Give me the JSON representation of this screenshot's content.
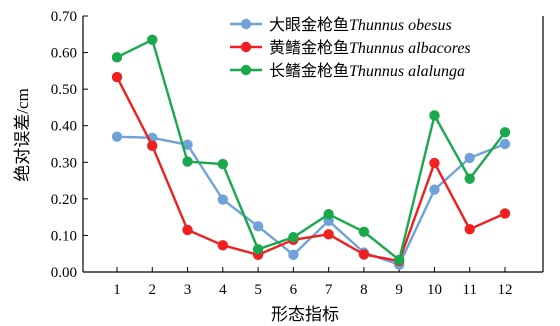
{
  "chart_data": {
    "type": "line",
    "xlabel": "形态指标",
    "ylabel": "绝对误差/cm",
    "categories": [
      "1",
      "2",
      "3",
      "4",
      "5",
      "6",
      "7",
      "8",
      "9",
      "10",
      "11",
      "12"
    ],
    "ylim": [
      0,
      0.7
    ],
    "yticks": [
      "0.00",
      "0.10",
      "0.20",
      "0.30",
      "0.40",
      "0.50",
      "0.60",
      "0.70"
    ],
    "grid": false,
    "legend_position": "top-right",
    "series": [
      {
        "name_cn": "大眼金枪鱼",
        "name_latin": "Thunnus obesus",
        "color": "#6fa3d8",
        "values": [
          0.37,
          0.367,
          0.348,
          0.198,
          0.125,
          0.047,
          0.14,
          0.053,
          0.02,
          0.225,
          0.312,
          0.35
        ]
      },
      {
        "name_cn": "黄鳍金枪鱼",
        "name_latin": "Thunnus albacores",
        "color": "#f02020",
        "values": [
          0.533,
          0.345,
          0.115,
          0.073,
          0.047,
          0.088,
          0.103,
          0.048,
          0.03,
          0.298,
          0.117,
          0.16
        ]
      },
      {
        "name_cn": "长鳍金枪鱼",
        "name_latin": "Thunnus alalunga",
        "color": "#1aa84d",
        "values": [
          0.587,
          0.635,
          0.302,
          0.295,
          0.062,
          0.095,
          0.158,
          0.11,
          0.033,
          0.428,
          0.255,
          0.382
        ]
      }
    ]
  }
}
